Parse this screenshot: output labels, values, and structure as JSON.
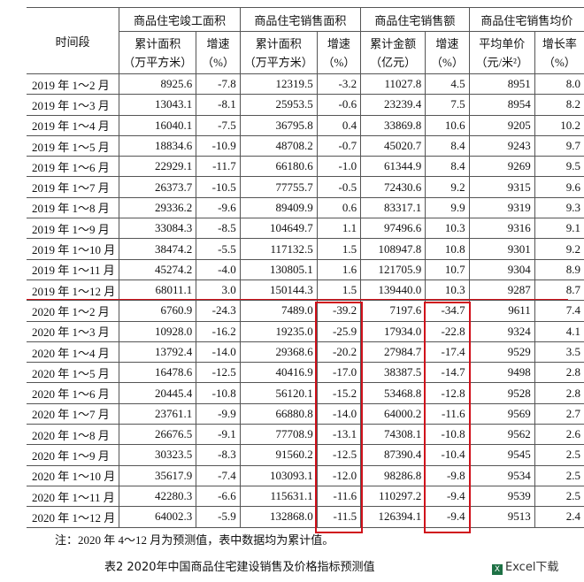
{
  "table": {
    "header": {
      "period": "时间段",
      "groups": [
        "商品住宅竣工面积",
        "商品住宅销售面积",
        "商品住宅销售额",
        "商品住宅销售均价"
      ],
      "columns": [
        [
          "累计面积",
          "（万平方米）"
        ],
        [
          "增速",
          "（%）"
        ],
        [
          "累计面积",
          "（万平方米）"
        ],
        [
          "增速",
          "（%）"
        ],
        [
          "累计金额",
          "（亿元）"
        ],
        [
          "增速",
          "（%）"
        ],
        [
          "平均单价",
          "（元/米²）"
        ],
        [
          "增长率",
          "（%）"
        ]
      ]
    },
    "rows": [
      [
        "2019 年 1～2 月",
        "8925.6",
        "-7.8",
        "12319.5",
        "-3.2",
        "11027.8",
        "4.5",
        "8951",
        "8.0"
      ],
      [
        "2019 年 1～3 月",
        "13043.1",
        "-8.1",
        "25953.5",
        "-0.6",
        "23239.4",
        "7.5",
        "8954",
        "8.2"
      ],
      [
        "2019 年 1～4 月",
        "16040.1",
        "-7.5",
        "36795.8",
        "0.4",
        "33869.8",
        "10.6",
        "9205",
        "10.2"
      ],
      [
        "2019 年 1～5 月",
        "18834.6",
        "-10.9",
        "48708.2",
        "-0.7",
        "45020.7",
        "8.4",
        "9243",
        "9.7"
      ],
      [
        "2019 年 1～6 月",
        "22929.1",
        "-11.7",
        "66180.6",
        "-1.0",
        "61344.9",
        "8.4",
        "9269",
        "9.5"
      ],
      [
        "2019 年 1～7 月",
        "26373.7",
        "-10.5",
        "77755.7",
        "-0.5",
        "72430.6",
        "9.2",
        "9315",
        "9.6"
      ],
      [
        "2019 年 1～8 月",
        "29336.2",
        "-9.6",
        "89409.9",
        "0.6",
        "83317.1",
        "9.9",
        "9319",
        "9.3"
      ],
      [
        "2019 年 1～9 月",
        "33084.3",
        "-8.5",
        "104649.7",
        "1.1",
        "97496.6",
        "10.3",
        "9316",
        "9.1"
      ],
      [
        "2019 年 1～10 月",
        "38474.2",
        "-5.5",
        "117132.5",
        "1.5",
        "108947.8",
        "10.8",
        "9301",
        "9.2"
      ],
      [
        "2019 年 1～11 月",
        "45274.2",
        "-4.0",
        "130805.1",
        "1.6",
        "121705.9",
        "10.7",
        "9304",
        "8.9"
      ],
      [
        "2019 年 1～12 月",
        "68011.1",
        "3.0",
        "150144.3",
        "1.5",
        "139440.0",
        "10.3",
        "9287",
        "8.7"
      ],
      [
        "2020 年 1～2 月",
        "6760.9",
        "-24.3",
        "7489.0",
        "-39.2",
        "7197.6",
        "-34.7",
        "9611",
        "7.4"
      ],
      [
        "2020 年 1～3 月",
        "10928.0",
        "-16.2",
        "19235.0",
        "-25.9",
        "17934.0",
        "-22.8",
        "9324",
        "4.1"
      ],
      [
        "2020 年 1～4 月",
        "13792.4",
        "-14.0",
        "29368.6",
        "-20.2",
        "27984.7",
        "-17.4",
        "9529",
        "3.5"
      ],
      [
        "2020 年 1～5 月",
        "16478.6",
        "-12.5",
        "40416.9",
        "-17.0",
        "38387.5",
        "-14.7",
        "9498",
        "2.8"
      ],
      [
        "2020 年 1～6 月",
        "20445.4",
        "-10.8",
        "56120.1",
        "-15.2",
        "53468.8",
        "-12.8",
        "9528",
        "2.8"
      ],
      [
        "2020 年 1～7 月",
        "23761.1",
        "-9.9",
        "66880.8",
        "-14.0",
        "64000.2",
        "-11.6",
        "9569",
        "2.7"
      ],
      [
        "2020 年 1～8 月",
        "26676.5",
        "-9.1",
        "77708.9",
        "-13.1",
        "74308.1",
        "-10.8",
        "9562",
        "2.6"
      ],
      [
        "2020 年 1～9 月",
        "30323.5",
        "-8.3",
        "91560.2",
        "-12.5",
        "87390.4",
        "-10.4",
        "9545",
        "2.5"
      ],
      [
        "2020 年 1～10 月",
        "35617.9",
        "-7.4",
        "103093.1",
        "-12.0",
        "98286.8",
        "-9.8",
        "9534",
        "2.5"
      ],
      [
        "2020 年 1～11 月",
        "42280.3",
        "-6.6",
        "115631.1",
        "-11.6",
        "110297.2",
        "-9.4",
        "9539",
        "2.5"
      ],
      [
        "2020 年 1～12 月",
        "64002.3",
        "-5.9",
        "132868.0",
        "-11.5",
        "126394.1",
        "-9.4",
        "9513",
        "2.4"
      ]
    ]
  },
  "note": "注：2020 年 4～12 月为预测值，表中数据均为累计值。",
  "caption": "表2  2020年中国商品住宅建设销售及价格指标预测值",
  "logo": "Excel下载"
}
